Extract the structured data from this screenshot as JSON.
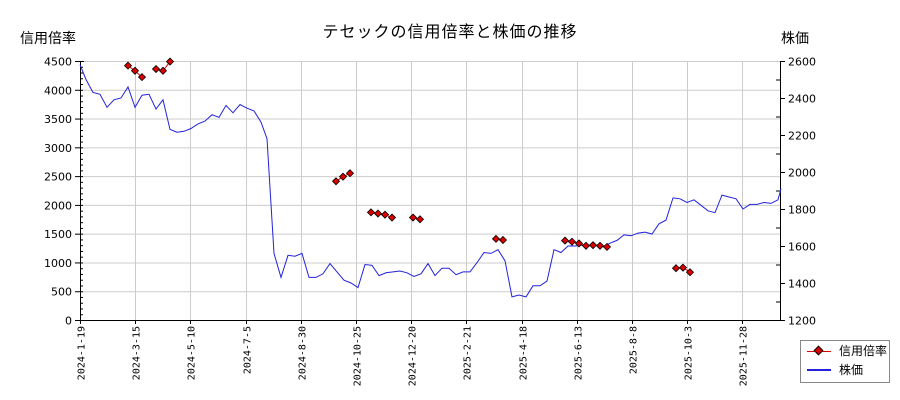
{
  "chart_data": {
    "type": "line",
    "title": "テセックの信用倍率と株価の推移",
    "ylabel_left": "信用倍率",
    "ylabel_right": "株価",
    "ylim_left": [
      0,
      4500
    ],
    "ylim_right": [
      1200,
      2600
    ],
    "yticks_left": [
      0,
      500,
      1000,
      1500,
      2000,
      2500,
      3000,
      3500,
      4000,
      4500
    ],
    "yticks_right": [
      1200,
      1400,
      1600,
      1800,
      2000,
      2200,
      2400,
      2600
    ],
    "xtick_labels": [
      "2024-1-19",
      "2024-3-15",
      "2024-5-10",
      "2024-7-5",
      "2024-8-30",
      "2024-10-25",
      "2024-12-20",
      "2025-2-21",
      "2025-4-18",
      "2025-6-13",
      "2025-8-8",
      "2025-10-3",
      "2025-11-28"
    ],
    "grid": true,
    "legend_position": "lower right outside",
    "series": [
      {
        "name": "信用倍率",
        "axis": "left",
        "color": "#dd0000",
        "marker": "diamond",
        "segments": [
          [
            [
              128,
              4420
            ],
            [
              135,
              4330
            ],
            [
              142,
              4220
            ]
          ],
          [
            [
              156,
              4360
            ],
            [
              163,
              4330
            ],
            [
              170,
              4490
            ]
          ],
          [
            [
              336,
              2410
            ],
            [
              343,
              2490
            ],
            [
              350,
              2550
            ]
          ],
          [
            [
              371,
              1870
            ],
            [
              378,
              1850
            ],
            [
              385,
              1830
            ],
            [
              392,
              1780
            ]
          ],
          [
            [
              413,
              1780
            ],
            [
              420,
              1750
            ]
          ],
          [
            [
              496,
              1410
            ],
            [
              503,
              1390
            ]
          ],
          [
            [
              565,
              1380
            ],
            [
              572,
              1360
            ],
            [
              579,
              1330
            ],
            [
              586,
              1290
            ],
            [
              593,
              1300
            ],
            [
              600,
              1290
            ],
            [
              607,
              1270
            ]
          ],
          [
            [
              676,
              900
            ],
            [
              683,
              910
            ],
            [
              690,
              830
            ]
          ]
        ]
      },
      {
        "name": "株価",
        "axis": "right",
        "color": "#2222dd",
        "points": [
          [
            80,
            2580
          ],
          [
            86,
            2500
          ],
          [
            93,
            2430
          ],
          [
            100,
            2420
          ],
          [
            107,
            2350
          ],
          [
            114,
            2390
          ],
          [
            121,
            2400
          ],
          [
            128,
            2460
          ],
          [
            135,
            2350
          ],
          [
            142,
            2415
          ],
          [
            149,
            2420
          ],
          [
            156,
            2340
          ],
          [
            163,
            2390
          ],
          [
            170,
            2230
          ],
          [
            177,
            2215
          ],
          [
            184,
            2220
          ],
          [
            191,
            2235
          ],
          [
            198,
            2260
          ],
          [
            205,
            2275
          ],
          [
            212,
            2310
          ],
          [
            219,
            2295
          ],
          [
            226,
            2360
          ],
          [
            233,
            2320
          ],
          [
            240,
            2365
          ],
          [
            247,
            2345
          ],
          [
            254,
            2330
          ],
          [
            261,
            2270
          ],
          [
            267,
            2180
          ],
          [
            274,
            1560
          ],
          [
            281,
            1430
          ],
          [
            288,
            1550
          ],
          [
            295,
            1545
          ],
          [
            302,
            1560
          ],
          [
            309,
            1430
          ],
          [
            316,
            1430
          ],
          [
            323,
            1450
          ],
          [
            330,
            1505
          ],
          [
            337,
            1460
          ],
          [
            344,
            1415
          ],
          [
            351,
            1400
          ],
          [
            358,
            1375
          ],
          [
            365,
            1500
          ],
          [
            372,
            1495
          ],
          [
            379,
            1440
          ],
          [
            386,
            1455
          ],
          [
            393,
            1460
          ],
          [
            400,
            1465
          ],
          [
            407,
            1455
          ],
          [
            414,
            1435
          ],
          [
            421,
            1450
          ],
          [
            428,
            1505
          ],
          [
            435,
            1440
          ],
          [
            442,
            1480
          ],
          [
            449,
            1480
          ],
          [
            456,
            1445
          ],
          [
            463,
            1460
          ],
          [
            470,
            1460
          ],
          [
            477,
            1510
          ],
          [
            484,
            1565
          ],
          [
            491,
            1560
          ],
          [
            498,
            1580
          ],
          [
            505,
            1520
          ],
          [
            512,
            1325
          ],
          [
            519,
            1335
          ],
          [
            526,
            1325
          ],
          [
            533,
            1385
          ],
          [
            540,
            1385
          ],
          [
            547,
            1410
          ],
          [
            554,
            1580
          ],
          [
            561,
            1565
          ],
          [
            568,
            1600
          ],
          [
            575,
            1600
          ],
          [
            582,
            1605
          ],
          [
            589,
            1600
          ],
          [
            596,
            1605
          ],
          [
            603,
            1595
          ],
          [
            610,
            1615
          ],
          [
            617,
            1630
          ],
          [
            624,
            1660
          ],
          [
            631,
            1655
          ],
          [
            638,
            1670
          ],
          [
            645,
            1675
          ],
          [
            652,
            1665
          ],
          [
            659,
            1720
          ],
          [
            666,
            1740
          ],
          [
            673,
            1860
          ],
          [
            680,
            1855
          ],
          [
            687,
            1835
          ],
          [
            694,
            1850
          ],
          [
            701,
            1820
          ],
          [
            708,
            1790
          ],
          [
            715,
            1780
          ],
          [
            722,
            1875
          ],
          [
            729,
            1865
          ],
          [
            736,
            1855
          ],
          [
            743,
            1800
          ],
          [
            750,
            1825
          ],
          [
            757,
            1825
          ],
          [
            764,
            1835
          ],
          [
            771,
            1830
          ],
          [
            778,
            1850
          ],
          [
            781,
            1910
          ]
        ]
      }
    ]
  },
  "title": "テセックの信用倍率と株価の推移",
  "left_axis_title": "信用倍率",
  "right_axis_title": "株価",
  "legend": {
    "items": [
      {
        "label": "信用倍率",
        "color": "#dd0000"
      },
      {
        "label": "株価",
        "color": "#2222dd"
      }
    ]
  }
}
